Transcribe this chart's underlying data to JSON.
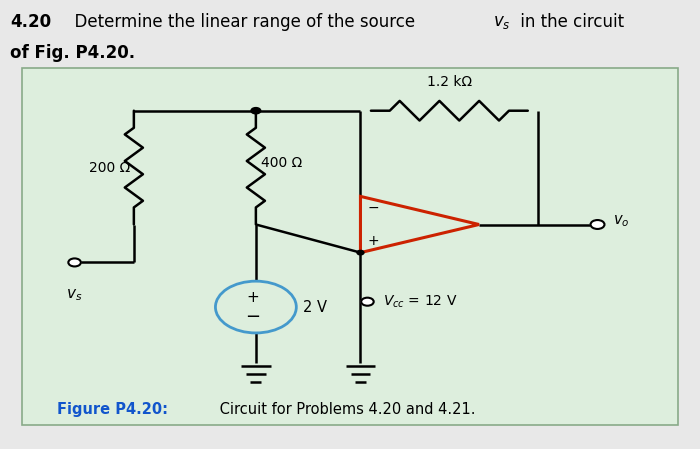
{
  "bg_color": "#e8e8e8",
  "box_facecolor": "#ddeedd",
  "box_edgecolor": "#88aa88",
  "wire_color": "#000000",
  "opamp_color": "#cc2200",
  "source_color": "#4499cc",
  "caption_color": "#1155cc",
  "label_200": "200 Ω",
  "label_400": "400 Ω",
  "label_1k2": "1.2 kΩ",
  "label_2V": "2 V",
  "label_Vcc": "$V_{cc}$ = 12 V",
  "label_vo": "$v_o$",
  "label_vs": "$v_s$",
  "title_num": "4.20",
  "title_rest": "  Determine the linear range of the source ",
  "title_vs_math": "$v_s$",
  "title_end": " in the circuit",
  "title_line2": "of Fig. P4.20.",
  "caption_bold": "Figure P4.20:",
  "caption_rest": " Circuit for Problems 4.20 and 4.21."
}
